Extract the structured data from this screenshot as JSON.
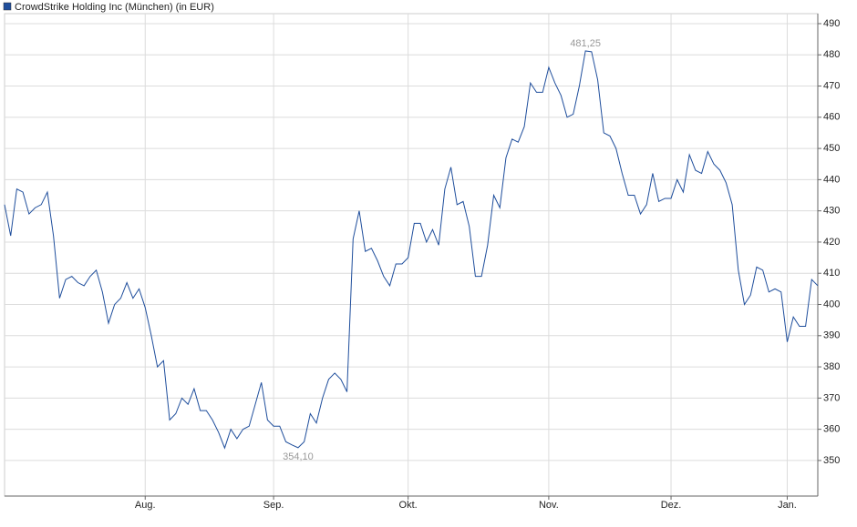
{
  "chart_data": {
    "type": "line",
    "ylim": [
      338.6,
      493.2
    ],
    "yticks": [
      350,
      360,
      370,
      380,
      390,
      400,
      410,
      420,
      430,
      440,
      450,
      460,
      470,
      480,
      490
    ],
    "xlim": [
      0,
      133
    ],
    "xticks": [
      {
        "value": 23,
        "label": "Aug."
      },
      {
        "value": 44,
        "label": "Sep."
      },
      {
        "value": 66,
        "label": "Okt."
      },
      {
        "value": 89,
        "label": "Nov."
      },
      {
        "value": 109,
        "label": "Dez."
      },
      {
        "value": 128,
        "label": "Jan."
      }
    ],
    "grid": true,
    "legend": "top-left",
    "series": [
      {
        "name": "CrowdStrike Holding Inc (München) (in EUR)",
        "color": "#1f4e9c",
        "values": [
          432,
          422,
          437,
          436,
          429,
          431,
          432,
          436,
          422,
          402,
          408,
          409,
          407,
          406,
          409,
          411,
          404,
          394,
          400,
          402,
          407,
          402,
          405,
          399,
          390,
          380,
          382,
          363,
          365,
          370,
          368,
          373,
          366,
          366,
          363,
          359,
          354,
          360,
          357,
          360,
          361,
          368,
          375,
          363,
          361,
          361,
          356,
          355,
          354.1,
          356,
          365,
          362,
          370,
          376,
          378,
          376,
          372,
          421,
          430,
          417,
          418,
          414,
          409,
          406,
          413,
          413,
          415,
          426,
          426,
          420,
          424,
          419,
          437,
          444,
          432,
          433,
          425,
          409,
          409,
          419,
          435,
          431,
          447,
          453,
          452,
          457,
          471,
          468,
          468,
          476,
          471,
          467,
          460,
          461,
          470,
          481.25,
          481,
          472,
          455,
          454,
          450,
          442,
          435,
          435,
          429,
          432,
          442,
          433,
          434,
          434,
          440,
          436,
          448,
          443,
          442,
          449,
          445,
          443,
          439,
          432,
          411,
          400,
          403,
          412,
          411,
          404,
          405,
          404,
          388,
          396,
          393,
          393,
          408,
          406
        ],
        "value_labels": [
          null,
          null,
          null,
          null,
          null,
          null,
          null,
          null,
          null,
          null,
          null,
          null,
          null,
          null,
          null,
          null,
          null,
          null,
          null,
          null,
          null,
          null,
          null,
          null,
          null,
          null,
          null,
          null,
          null,
          null,
          null,
          null,
          null,
          null,
          null,
          null,
          null,
          null,
          null,
          null,
          null,
          null,
          null,
          null,
          null,
          null,
          null,
          null,
          "354,10",
          null,
          null,
          null,
          null,
          null,
          null,
          null,
          null,
          null,
          null,
          null,
          null,
          null,
          null,
          null,
          null,
          null,
          null,
          null,
          null,
          null,
          null,
          null,
          null,
          null,
          null,
          null,
          null,
          null,
          null,
          null,
          null,
          null,
          null,
          null,
          null,
          null,
          null,
          null,
          null,
          null,
          null,
          null,
          null,
          null,
          null,
          "481,25",
          null,
          null,
          null,
          null,
          null,
          null,
          null,
          null,
          null,
          null,
          null,
          null,
          null,
          null,
          null,
          null,
          null,
          null,
          null,
          null,
          null,
          null,
          null,
          null,
          null,
          null,
          null,
          null,
          null,
          null,
          null,
          null,
          null,
          null,
          null,
          null,
          null,
          null
        ]
      }
    ]
  }
}
